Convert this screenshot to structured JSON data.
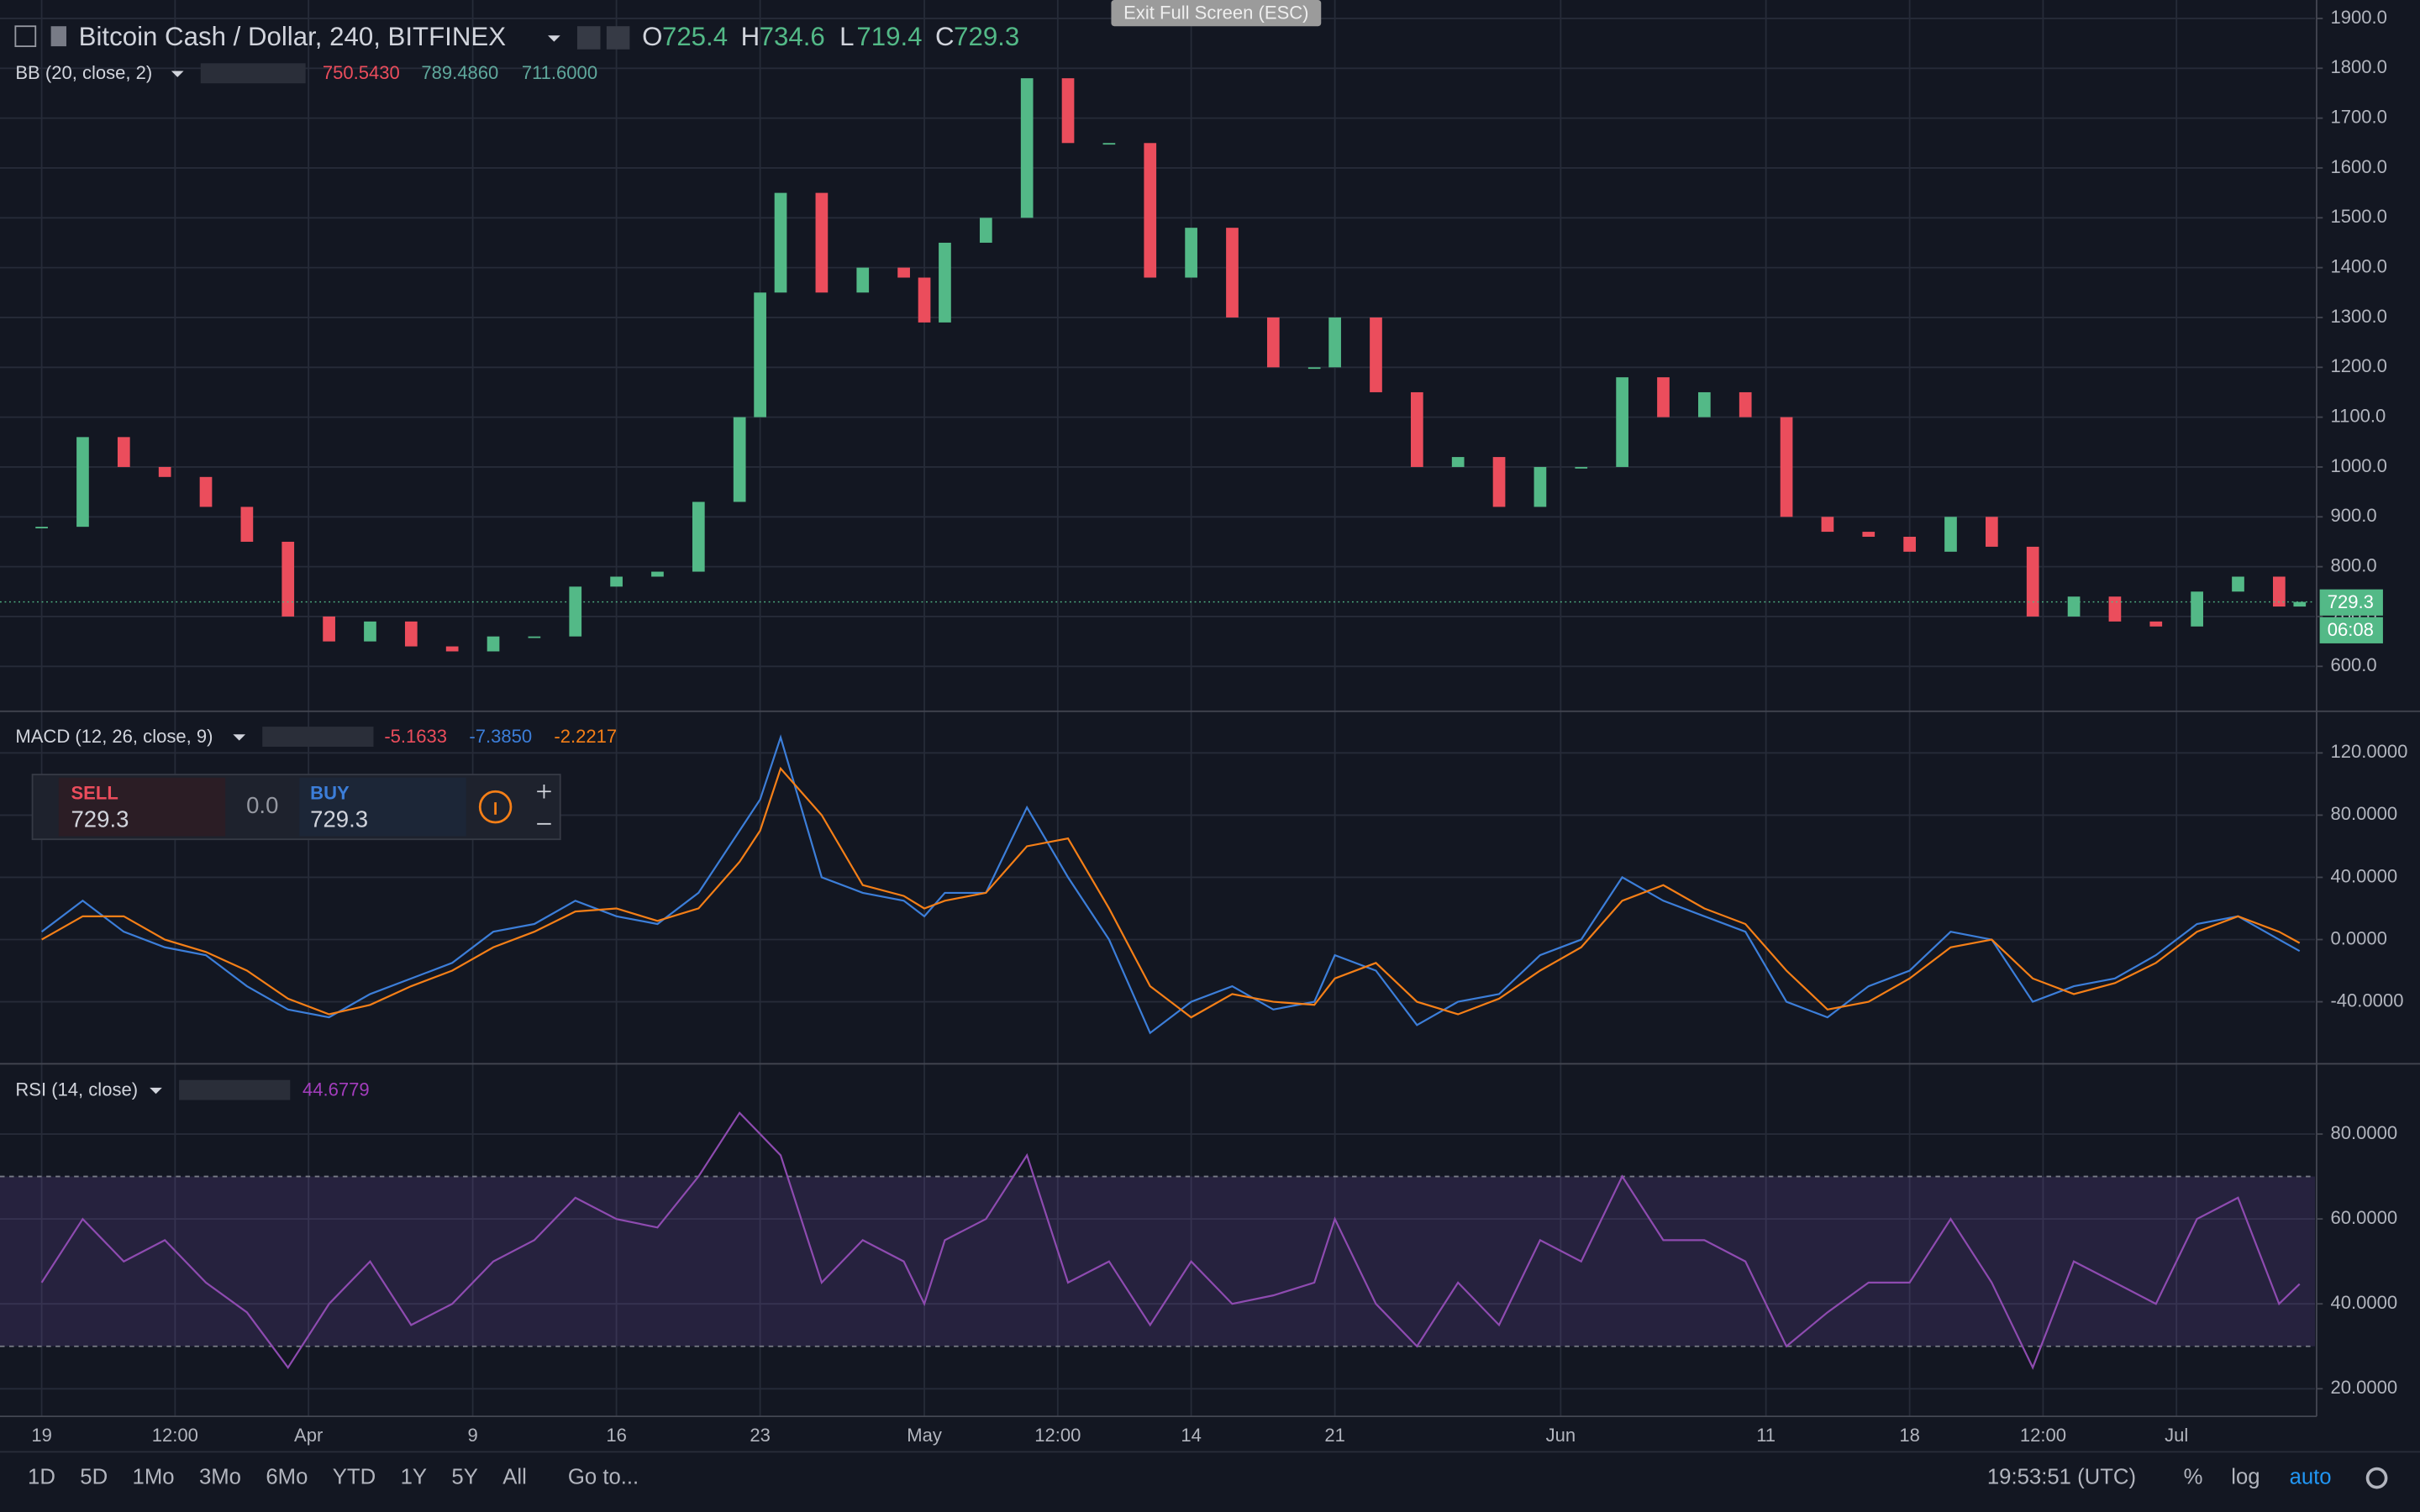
{
  "window": {
    "exit_fullscreen": "Exit Full Screen (ESC)"
  },
  "header": {
    "symbol": "Bitcoin Cash / Dollar, 240, BITFINEX",
    "ohlc": [
      {
        "label": "O",
        "value": "725.4"
      },
      {
        "label": "H",
        "value": "734.6"
      },
      {
        "label": "L",
        "value": "719.4"
      },
      {
        "label": "C",
        "value": "729.3"
      }
    ]
  },
  "indicators": [
    {
      "name": "BB (20, close, 2)",
      "values": [
        "750.5430",
        "789.4860",
        "711.6000"
      ]
    },
    {
      "name": "MACD (12, 26, close, 9)",
      "values": [
        "-5.1633",
        "-7.3850",
        "-2.2217"
      ]
    },
    {
      "name": "RSI (14, close)",
      "values": [
        "44.6779"
      ]
    }
  ],
  "trade_widget": {
    "sell_label": "SELL",
    "sell_price": "729.3",
    "spread": "0.0",
    "buy_label": "BUY",
    "buy_price": "729.3"
  },
  "price_tag": {
    "price": "729.3",
    "countdown": "06:08"
  },
  "toolbar": {
    "ranges": [
      "1D",
      "5D",
      "1Mo",
      "3Mo",
      "6Mo",
      "YTD",
      "1Y",
      "5Y",
      "All"
    ],
    "goto": "Go to...",
    "clock": "19:53:51 (UTC)",
    "options": [
      "%",
      "log",
      "auto"
    ]
  },
  "chart_data": [
    {
      "type": "candlestick",
      "up_color": "#53b987",
      "down_color": "#eb4d5c",
      "grid": true,
      "x": [
        0,
        2,
        4,
        6,
        8,
        10,
        12,
        14,
        16,
        18,
        20,
        22,
        24,
        26,
        28,
        30,
        32,
        34,
        35,
        36,
        38,
        40,
        42,
        43,
        44,
        46,
        48,
        50,
        52,
        54,
        56,
        58,
        60,
        62,
        63,
        65,
        67,
        69,
        71,
        73,
        75,
        77,
        79,
        81,
        83,
        85,
        87,
        89,
        91,
        93,
        95,
        97,
        99,
        101,
        103,
        105,
        107,
        109,
        110
      ],
      "values": [
        880,
        1060,
        1000,
        980,
        920,
        850,
        700,
        650,
        690,
        640,
        630,
        660,
        660,
        760,
        780,
        790,
        930,
        1100,
        1350,
        1550,
        1350,
        1400,
        1380,
        1290,
        1450,
        1500,
        1780,
        1650,
        1650,
        1380,
        1480,
        1300,
        1200,
        1200,
        1300,
        1150,
        1000,
        1020,
        920,
        1000,
        1000,
        1180,
        1100,
        1150,
        1100,
        900,
        870,
        860,
        830,
        900,
        840,
        700,
        740,
        690,
        680,
        750,
        780,
        720,
        729.3
      ],
      "xlim": [
        -2.03,
        110.75
      ],
      "xticks": [
        {
          "value": 0,
          "label": "19"
        },
        {
          "value": 6.5,
          "label": "12:00"
        },
        {
          "value": 13,
          "label": "Apr"
        },
        {
          "value": 21,
          "label": "9"
        },
        {
          "value": 28,
          "label": "16"
        },
        {
          "value": 35,
          "label": "23"
        },
        {
          "value": 43,
          "label": "May"
        },
        {
          "value": 49.5,
          "label": "12:00"
        },
        {
          "value": 56,
          "label": "14"
        },
        {
          "value": 63,
          "label": "21"
        },
        {
          "value": 74,
          "label": "Jun"
        },
        {
          "value": 84,
          "label": "11"
        },
        {
          "value": 91,
          "label": "18"
        },
        {
          "value": 97.5,
          "label": "12:00"
        },
        {
          "value": 104,
          "label": "Jul"
        }
      ],
      "ylim": [
        513,
        1937
      ],
      "yticks": [
        {
          "value": 600,
          "label": "600.0"
        },
        {
          "value": 700,
          "label": "700.0"
        },
        {
          "value": 800,
          "label": "800.0"
        },
        {
          "value": 900,
          "label": "900.0"
        },
        {
          "value": 1000,
          "label": "1000.0"
        },
        {
          "value": 1100,
          "label": "1100.0"
        },
        {
          "value": 1200,
          "label": "1200.0"
        },
        {
          "value": 1300,
          "label": "1300.0"
        },
        {
          "value": 1400,
          "label": "1400.0"
        },
        {
          "value": 1500,
          "label": "1500.0"
        },
        {
          "value": 1600,
          "label": "1600.0"
        },
        {
          "value": 1700,
          "label": "1700.0"
        },
        {
          "value": 1800,
          "label": "1800.0"
        },
        {
          "value": 1900,
          "label": "1900.0"
        }
      ]
    },
    {
      "type": "line",
      "grid": true,
      "x": [
        0,
        2,
        4,
        6,
        8,
        10,
        12,
        14,
        16,
        18,
        20,
        22,
        24,
        26,
        28,
        30,
        32,
        34,
        35,
        36,
        38,
        40,
        42,
        43,
        44,
        46,
        48,
        50,
        52,
        54,
        56,
        58,
        60,
        62,
        63,
        65,
        67,
        69,
        71,
        73,
        75,
        77,
        79,
        81,
        83,
        85,
        87,
        89,
        91,
        93,
        95,
        97,
        99,
        101,
        103,
        105,
        107,
        109,
        110
      ],
      "series": [
        {
          "color": "#3c7ed9",
          "values": [
            5,
            25,
            5,
            -5,
            -10,
            -30,
            -45,
            -50,
            -35,
            -25,
            -15,
            5,
            10,
            25,
            15,
            10,
            30,
            70,
            90,
            130,
            40,
            30,
            25,
            15,
            30,
            30,
            85,
            40,
            0,
            -60,
            -40,
            -30,
            -45,
            -40,
            -10,
            -20,
            -55,
            -40,
            -35,
            -10,
            0,
            40,
            25,
            15,
            5,
            -40,
            -50,
            -30,
            -20,
            5,
            0,
            -40,
            -30,
            -25,
            -10,
            10,
            15,
            0,
            -7.385
          ]
        },
        {
          "color": "#f57f17",
          "values": [
            0,
            15,
            15,
            0,
            -8,
            -20,
            -38,
            -48,
            -42,
            -30,
            -20,
            -5,
            5,
            18,
            20,
            12,
            20,
            50,
            70,
            110,
            80,
            35,
            28,
            20,
            25,
            30,
            60,
            65,
            20,
            -30,
            -50,
            -35,
            -40,
            -42,
            -25,
            -15,
            -40,
            -48,
            -38,
            -20,
            -5,
            25,
            35,
            20,
            10,
            -20,
            -45,
            -40,
            -25,
            -5,
            0,
            -25,
            -35,
            -28,
            -15,
            5,
            15,
            5,
            -2.2217
          ]
        }
      ],
      "xlim": [
        -2.03,
        110.75
      ],
      "ylim": [
        -78.4,
        145.8
      ],
      "yticks": [
        {
          "value": -40,
          "label": "-40.0000"
        },
        {
          "value": 0,
          "label": "0.0000"
        },
        {
          "value": 40,
          "label": "40.0000"
        },
        {
          "value": 80,
          "label": "80.0000"
        },
        {
          "value": 120,
          "label": "120.0000"
        }
      ]
    },
    {
      "type": "line",
      "grid": true,
      "band": [
        30,
        70
      ],
      "band_color": "#7e57c2",
      "x": [
        0,
        2,
        4,
        6,
        8,
        10,
        12,
        14,
        16,
        18,
        20,
        22,
        24,
        26,
        28,
        30,
        32,
        34,
        35,
        36,
        38,
        40,
        42,
        43,
        44,
        46,
        48,
        50,
        52,
        54,
        56,
        58,
        60,
        62,
        63,
        65,
        67,
        69,
        71,
        73,
        75,
        77,
        79,
        81,
        83,
        85,
        87,
        89,
        91,
        93,
        95,
        97,
        99,
        101,
        103,
        105,
        107,
        109,
        110
      ],
      "series": [
        {
          "color": "#8e4bb0",
          "values": [
            45,
            60,
            50,
            55,
            45,
            38,
            25,
            40,
            50,
            35,
            40,
            50,
            55,
            65,
            60,
            58,
            70,
            85,
            80,
            75,
            45,
            55,
            50,
            40,
            55,
            60,
            75,
            45,
            50,
            35,
            50,
            40,
            42,
            45,
            60,
            40,
            30,
            45,
            35,
            55,
            50,
            70,
            55,
            55,
            50,
            30,
            38,
            45,
            45,
            60,
            45,
            25,
            50,
            45,
            40,
            60,
            65,
            40,
            44.6779
          ]
        }
      ],
      "xlim": [
        -2.03,
        110.75
      ],
      "ylim": [
        13.5,
        96
      ],
      "yticks": [
        {
          "value": 20,
          "label": "20.0000"
        },
        {
          "value": 40,
          "label": "40.0000"
        },
        {
          "value": 60,
          "label": "60.0000"
        },
        {
          "value": 80,
          "label": "80.0000"
        }
      ]
    }
  ]
}
